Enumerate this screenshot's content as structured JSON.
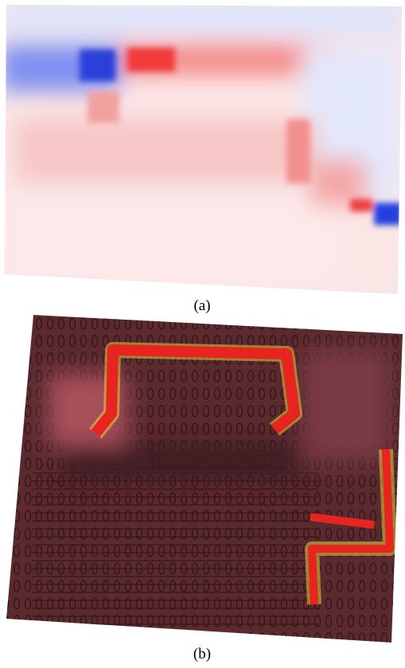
{
  "figure": {
    "panels": [
      {
        "caption": "(a)"
      },
      {
        "caption": "(b)"
      }
    ]
  }
}
